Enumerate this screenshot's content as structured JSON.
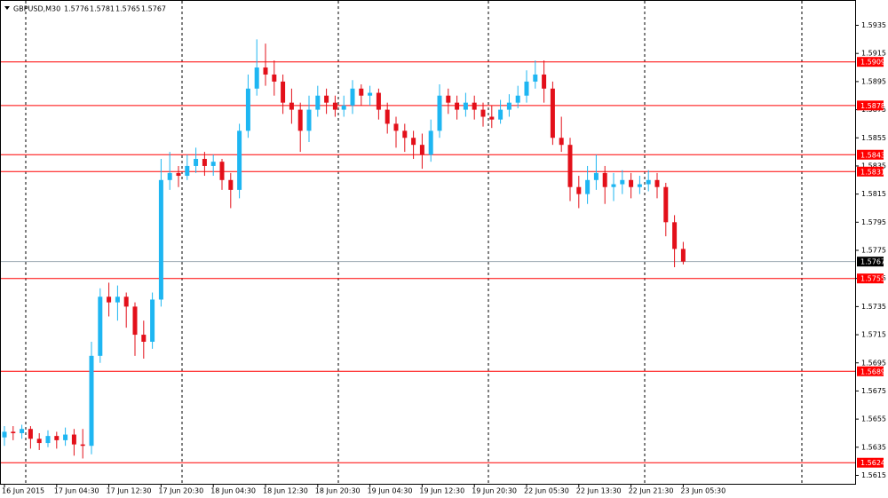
{
  "chart_data": {
    "type": "candlestick",
    "title": "GBPUSD,M30",
    "x": [
      "16 Jun 2015",
      null,
      null,
      null,
      null,
      null,
      "17 Jun 04:30",
      null,
      null,
      null,
      null,
      null,
      "17 Jun 12:30",
      null,
      null,
      null,
      null,
      null,
      "17 Jun 20:30",
      null,
      null,
      null,
      null,
      null,
      "18 Jun 04:30",
      null,
      null,
      null,
      null,
      null,
      "18 Jun 12:30",
      null,
      null,
      null,
      null,
      null,
      "18 Jun 20:30",
      null,
      null,
      null,
      null,
      null,
      "19 Jun 04:30",
      null,
      null,
      null,
      null,
      null,
      "19 Jun 12:30",
      null,
      null,
      null,
      null,
      null,
      "19 Jun 20:30",
      null,
      null,
      null,
      null,
      null,
      "22 Jun 05:30",
      null,
      null,
      null,
      null,
      null,
      "22 Jun 13:30",
      null,
      null,
      null,
      null,
      null,
      "22 Jun 21:30",
      null,
      null,
      null,
      null,
      null,
      "23 Jun 05:30"
    ],
    "open": [
      1.5642,
      1.5646,
      1.5645,
      1.5648,
      1.5641,
      1.5638,
      1.5643,
      1.564,
      1.5644,
      1.5637,
      1.5636,
      1.57,
      1.5742,
      1.5738,
      1.5742,
      1.5735,
      1.5715,
      1.571,
      1.574,
      1.5825,
      1.583,
      1.5828,
      1.5835,
      1.584,
      1.5835,
      1.5838,
      1.5825,
      1.5818,
      1.586,
      1.589,
      1.5905,
      1.59,
      1.5895,
      1.588,
      1.5875,
      1.586,
      1.5875,
      1.5885,
      1.588,
      1.5875,
      1.5878,
      1.589,
      1.5885,
      1.5887,
      1.5875,
      1.5865,
      1.586,
      1.5855,
      1.585,
      1.5843,
      1.586,
      1.5885,
      1.588,
      1.5875,
      1.588,
      1.5875,
      1.587,
      1.5868,
      1.5875,
      1.588,
      1.5885,
      1.5895,
      1.59,
      1.589,
      1.5855,
      1.585,
      1.582,
      1.5815,
      1.5825,
      1.583,
      1.582,
      1.5822,
      1.5825,
      1.582,
      1.5822,
      1.5825,
      1.582,
      1.5795,
      1.5776
    ],
    "high": [
      1.565,
      1.565,
      1.5651,
      1.565,
      1.5645,
      1.5647,
      1.5646,
      1.5649,
      1.5648,
      1.5648,
      1.571,
      1.5748,
      1.5752,
      1.575,
      1.5745,
      1.5738,
      1.5725,
      1.5745,
      1.584,
      1.5845,
      1.5835,
      1.5843,
      1.5848,
      1.5845,
      1.5843,
      1.584,
      1.583,
      1.5865,
      1.59,
      1.5925,
      1.5922,
      1.591,
      1.59,
      1.589,
      1.588,
      1.5885,
      1.5892,
      1.589,
      1.5885,
      1.5885,
      1.5896,
      1.5893,
      1.5892,
      1.589,
      1.588,
      1.587,
      1.5865,
      1.586,
      1.5858,
      1.5868,
      1.5893,
      1.589,
      1.5885,
      1.5887,
      1.5885,
      1.588,
      1.5878,
      1.5882,
      1.5886,
      1.5892,
      1.5903,
      1.591,
      1.591,
      1.5895,
      1.587,
      1.5855,
      1.5828,
      1.5835,
      1.5843,
      1.5835,
      1.583,
      1.5832,
      1.583,
      1.5828,
      1.5832,
      1.583,
      1.5823,
      1.58,
      1.5781
    ],
    "low": [
      1.5636,
      1.564,
      1.5641,
      1.5634,
      1.5633,
      1.5635,
      1.5634,
      1.5636,
      1.5629,
      1.5627,
      1.563,
      1.5695,
      1.5728,
      1.5725,
      1.572,
      1.57,
      1.5698,
      1.5705,
      1.5735,
      1.5818,
      1.582,
      1.5825,
      1.583,
      1.5828,
      1.5828,
      1.5818,
      1.5805,
      1.5812,
      1.5855,
      1.5885,
      1.5892,
      1.5885,
      1.5872,
      1.5865,
      1.5845,
      1.5852,
      1.587,
      1.5872,
      1.587,
      1.587,
      1.5872,
      1.5878,
      1.5878,
      1.5868,
      1.5858,
      1.5848,
      1.5845,
      1.584,
      1.5833,
      1.5838,
      1.5855,
      1.5872,
      1.5868,
      1.587,
      1.5868,
      1.5863,
      1.5862,
      1.5865,
      1.587,
      1.5876,
      1.588,
      1.589,
      1.588,
      1.585,
      1.5845,
      1.581,
      1.5805,
      1.5808,
      1.5818,
      1.5808,
      1.581,
      1.5815,
      1.5812,
      1.5815,
      1.5817,
      1.5812,
      1.5785,
      1.5763,
      1.5765
    ],
    "close": [
      1.5646,
      1.5645,
      1.5648,
      1.5641,
      1.5638,
      1.5643,
      1.564,
      1.5644,
      1.5637,
      1.5636,
      1.57,
      1.5742,
      1.5738,
      1.5742,
      1.5735,
      1.5715,
      1.571,
      1.574,
      1.5825,
      1.583,
      1.5828,
      1.5835,
      1.584,
      1.5835,
      1.5838,
      1.5825,
      1.5818,
      1.586,
      1.589,
      1.5905,
      1.59,
      1.5895,
      1.588,
      1.5875,
      1.586,
      1.5875,
      1.5885,
      1.588,
      1.5875,
      1.5878,
      1.589,
      1.5885,
      1.5887,
      1.5875,
      1.5865,
      1.586,
      1.5855,
      1.585,
      1.5843,
      1.586,
      1.5885,
      1.588,
      1.5875,
      1.588,
      1.5875,
      1.587,
      1.5868,
      1.5875,
      1.588,
      1.5885,
      1.5895,
      1.59,
      1.589,
      1.5855,
      1.585,
      1.582,
      1.5815,
      1.5825,
      1.583,
      1.582,
      1.5822,
      1.5825,
      1.582,
      1.5822,
      1.5825,
      1.582,
      1.5795,
      1.5776,
      1.5767
    ],
    "up_color": "#1eb6f2",
    "down_color": "#e3101a",
    "ylim": [
      1.5609,
      1.5953
    ],
    "yticks": [
      1.5615,
      1.5635,
      1.5655,
      1.5675,
      1.5695,
      1.5715,
      1.5735,
      1.5755,
      1.5775,
      1.5795,
      1.5815,
      1.5835,
      1.5855,
      1.5875,
      1.5895,
      1.5915,
      1.5935
    ],
    "levels": {
      "color": "#ff0000",
      "values": [
        1.5909,
        1.5878,
        1.5843,
        1.5831,
        1.5755,
        1.5689,
        1.5624
      ]
    },
    "last_price_color": "#9aa7b0"
  }
}
